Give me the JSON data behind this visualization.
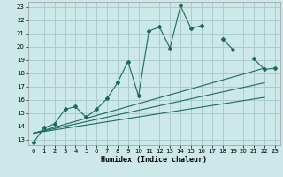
{
  "xlabel": "Humidex (Indice chaleur)",
  "bg_color": "#cce8e8",
  "grid_color": "#aacccc",
  "line_color": "#1a6b5a",
  "xlim": [
    -0.5,
    23.5
  ],
  "ylim": [
    12.6,
    23.4
  ],
  "xticks": [
    0,
    1,
    2,
    3,
    4,
    5,
    6,
    7,
    8,
    9,
    10,
    11,
    12,
    13,
    14,
    15,
    16,
    17,
    18,
    19,
    20,
    21,
    22,
    23
  ],
  "yticks": [
    13,
    14,
    15,
    16,
    17,
    18,
    19,
    20,
    21,
    22,
    23
  ],
  "main_x": [
    0,
    1,
    2,
    3,
    4,
    5,
    6,
    7,
    8,
    9,
    10,
    11,
    12,
    13,
    14,
    15,
    16,
    17,
    18,
    19,
    20,
    21,
    22,
    23
  ],
  "main_y": [
    12.8,
    13.9,
    14.2,
    15.3,
    15.5,
    14.7,
    15.3,
    16.1,
    17.3,
    18.9,
    16.3,
    21.2,
    21.5,
    19.9,
    23.1,
    21.4,
    21.6,
    null,
    20.6,
    19.8,
    null,
    19.1,
    18.3,
    18.4
  ],
  "linear_lines": [
    {
      "x": [
        0,
        22
      ],
      "y": [
        13.5,
        18.4
      ]
    },
    {
      "x": [
        0,
        22
      ],
      "y": [
        13.5,
        17.3
      ]
    },
    {
      "x": [
        0,
        22
      ],
      "y": [
        13.5,
        16.2
      ]
    }
  ]
}
